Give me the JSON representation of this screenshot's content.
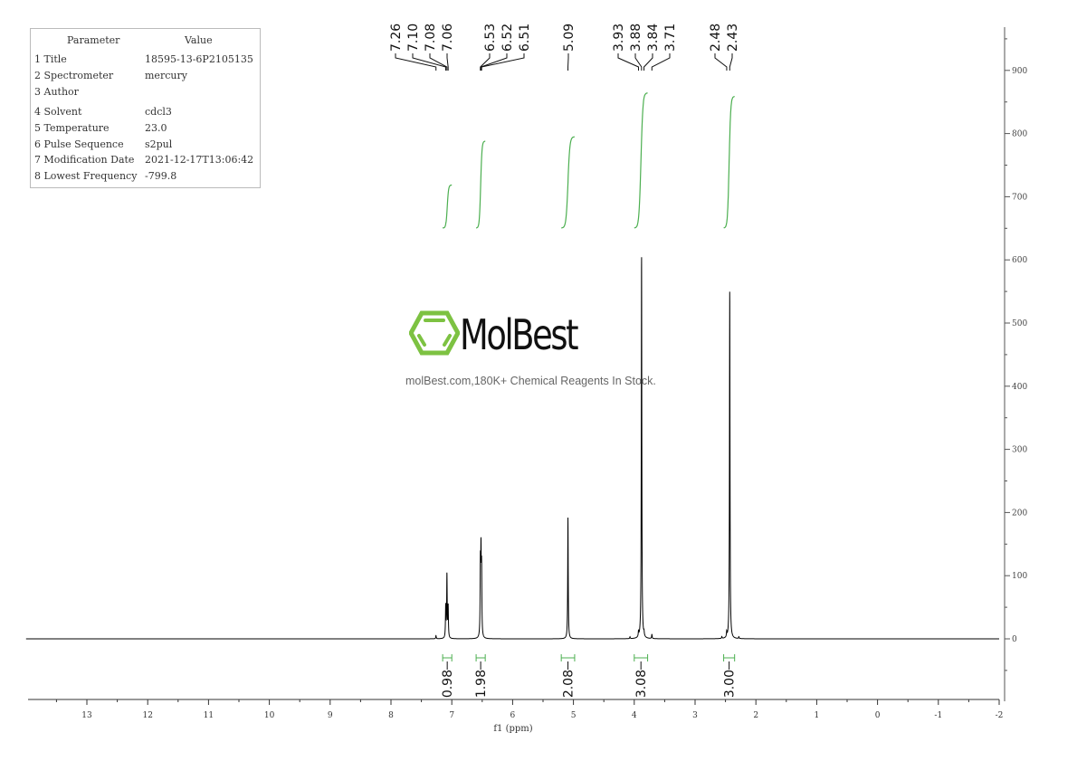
{
  "parameters": {
    "header": [
      "Parameter",
      "Value"
    ],
    "rows": [
      {
        "name": "1 Title",
        "value": "18595-13-6P2105135"
      },
      {
        "name": "2 Spectrometer",
        "value": "mercury"
      },
      {
        "name": "3 Author",
        "value": ""
      },
      {
        "name": "4 Solvent",
        "value": "cdcl3"
      },
      {
        "name": "5 Temperature",
        "value": "23.0"
      },
      {
        "name": "6 Pulse Sequence",
        "value": "s2pul"
      },
      {
        "name": "7 Modification Date",
        "value": "2021-12-17T13:06:42"
      },
      {
        "name": "8 Lowest Frequency",
        "value": "-799.8"
      }
    ]
  },
  "watermark": {
    "brand": "MolBest",
    "tagline": "molBest.com,180K+ Chemical Reagents In Stock."
  },
  "chart_data": {
    "type": "line",
    "title": "",
    "xlabel": "f1 (ppm)",
    "ylabel": "",
    "xlim": [
      14,
      -2
    ],
    "ylim": [
      -100,
      970
    ],
    "x_ticks": [
      13,
      12,
      11,
      10,
      9,
      8,
      7,
      6,
      5,
      4,
      3,
      2,
      1,
      0,
      -1,
      -2
    ],
    "y_ticks": [
      0,
      100,
      200,
      300,
      400,
      500,
      600,
      700,
      800,
      900
    ],
    "y_axis_side": "right",
    "grid": false,
    "line_color": "#000000",
    "integral_color": "#4caf50",
    "peaks": [
      {
        "ppm": 7.26,
        "height": 5
      },
      {
        "ppm": 7.1,
        "height": 50
      },
      {
        "ppm": 7.08,
        "height": 100
      },
      {
        "ppm": 7.06,
        "height": 50
      },
      {
        "ppm": 6.53,
        "height": 110
      },
      {
        "ppm": 6.52,
        "height": 120
      },
      {
        "ppm": 6.51,
        "height": 100
      },
      {
        "ppm": 5.09,
        "height": 192
      },
      {
        "ppm": 4.07,
        "height": 3
      },
      {
        "ppm": 3.93,
        "height": 8
      },
      {
        "ppm": 3.88,
        "height": 610
      },
      {
        "ppm": 3.84,
        "height": 6
      },
      {
        "ppm": 3.71,
        "height": 7
      },
      {
        "ppm": 2.56,
        "height": 3
      },
      {
        "ppm": 2.48,
        "height": 8
      },
      {
        "ppm": 2.43,
        "height": 555
      },
      {
        "ppm": 2.28,
        "height": 3
      }
    ],
    "peak_label_groups": [
      [
        "7.26",
        "7.10",
        "7.08",
        "7.06"
      ],
      [
        "6.53",
        "6.52",
        "6.51"
      ],
      [
        "5.09"
      ],
      [
        "3.93",
        "3.88",
        "3.84",
        "3.71"
      ],
      [
        "2.48",
        "2.43"
      ]
    ],
    "integrals": [
      {
        "from": 7.15,
        "to": 7.0,
        "value": "0.98"
      },
      {
        "from": 6.6,
        "to": 6.45,
        "value": "1.98"
      },
      {
        "from": 5.2,
        "to": 4.98,
        "value": "2.08"
      },
      {
        "from": 4.0,
        "to": 3.78,
        "value": "3.08"
      },
      {
        "from": 2.53,
        "to": 2.35,
        "value": "3.00"
      }
    ]
  }
}
